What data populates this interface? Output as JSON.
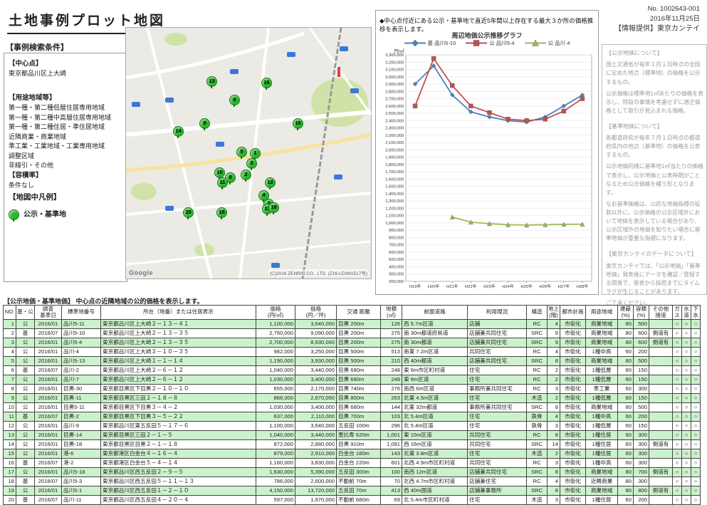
{
  "header": {
    "title": "土地事例プロット地図",
    "doc_no": "No. 1002643-001",
    "date": "2016年11月25日",
    "provider": "【情報提供】東京カンテイ"
  },
  "search": {
    "heading": "【事例検索条件】",
    "center_label": "【中心点】",
    "center_value": "東京都品川区上大崎",
    "youto_label": "【用途地域等】",
    "youto_items": [
      "第一種・第二種低層住居専用地域",
      "第一種・第二種中高層住居専用地域",
      "第一種・第二種住居・準住居地域",
      "近隣商業・商業地域",
      "準工業・工業地域・工業専用地域",
      "調整区域",
      "非線引・その他"
    ],
    "yoseki_label": "【容積率】",
    "yoseki_value": "条件なし",
    "legend_label": "【地図中凡例】",
    "legend_item": "公示・基準地"
  },
  "map": {
    "attribution": "(C)2016 ZENRIN CO., LTD. (Z16-LD3N1517号)",
    "logo": "Google",
    "markers": [
      {
        "no": "1",
        "x": 181,
        "y": 176
      },
      {
        "no": "2",
        "x": 168,
        "y": 206
      },
      {
        "no": "3",
        "x": 176,
        "y": 190
      },
      {
        "no": "4",
        "x": 193,
        "y": 235
      },
      {
        "no": "5",
        "x": 162,
        "y": 174
      },
      {
        "no": "6",
        "x": 152,
        "y": 101
      },
      {
        "no": "7",
        "x": 200,
        "y": 247
      },
      {
        "no": "8",
        "x": 146,
        "y": 210
      },
      {
        "no": "9",
        "x": 110,
        "y": 134
      },
      {
        "no": "10",
        "x": 131,
        "y": 203
      },
      {
        "no": "11",
        "x": 135,
        "y": 217
      },
      {
        "no": "12",
        "x": 202,
        "y": 217
      },
      {
        "no": "13",
        "x": 120,
        "y": 75
      },
      {
        "no": "14",
        "x": 73,
        "y": 145
      },
      {
        "no": "15",
        "x": 241,
        "y": 134
      },
      {
        "no": "16",
        "x": 197,
        "y": 77
      },
      {
        "no": "17",
        "x": 198,
        "y": 254
      },
      {
        "no": "18",
        "x": 134,
        "y": 259
      },
      {
        "no": "19",
        "x": 207,
        "y": 252
      },
      {
        "no": "20",
        "x": 87,
        "y": 259
      }
    ]
  },
  "chart_note": "◆中心点付近にある公示・基準地で直近5年間以上存在する最大３か所の価格推移を表示します。",
  "chart_data": {
    "type": "line",
    "title": "周辺地価公示推移グラフ",
    "ylabel": "円/㎡",
    "x": [
      "H19年",
      "H20年",
      "H21年",
      "H22年",
      "H23年",
      "H24年",
      "H25年",
      "H26年",
      "H27年",
      "H28年"
    ],
    "ylim": [
      200000,
      3300000
    ],
    "ytick_step": 100000,
    "grid": true,
    "legend_position": "top",
    "series": [
      {
        "name": "基 品川5-10",
        "color": "#4f81bd",
        "marker": "diamond",
        "values": [
          2900000,
          3150000,
          2750000,
          2520000,
          2450000,
          2400000,
          2380000,
          2450000,
          2600000,
          2750000
        ]
      },
      {
        "name": "公 品川5-4",
        "color": "#c0504d",
        "marker": "square",
        "values": [
          2600000,
          3250000,
          2880000,
          2600000,
          2510000,
          2420000,
          2400000,
          2420000,
          2530000,
          2700000
        ]
      },
      {
        "name": "公 品川 4",
        "color": "#9bbb59",
        "marker": "triangle",
        "values": [
          null,
          null,
          1080000,
          1010000,
          990000,
          975000,
          970000,
          975000,
          980000,
          982000
        ]
      }
    ]
  },
  "info_panel": {
    "sections": [
      {
        "heading": "【公示地価について】",
        "paragraphs": [
          "国土交通省が毎年１月１日時点の全国に定めた地点（標準地）の価格を公示するもの。",
          "公示価格は標準地1㎡あたりの価格を表示し、特段の事情を考慮せずに適正価格として取引が見込まれる価格。"
        ]
      },
      {
        "heading": "【基準地価について】",
        "paragraphs": [
          "各都道府県が毎年７月１日時点の都道府県内の地点（基準地）の価格を公表するもの。",
          "公示地価同様に基準地1㎡当たりの価格で表示し、公示地価と公表時期がことなるため公示価格を補う形となります。",
          "なお基準価格は、公的な地価指標の役割以外に、公示価格の公示区域外において地価を表示している場合があり、公示区域外の地価を知りたい場合に基準地価が重要な指標になります。"
        ]
      },
      {
        "heading": "【東京カンテイのデータについて】",
        "paragraphs": [
          "東京カンテイでは、「公示地価」「基準地価」発表後にデータを確認／登録する関係で、発表から採用までにタイムラグが生じることがあります。",
          "ご了承ください。"
        ]
      }
    ]
  },
  "table": {
    "caption": "【公示地価・基準地価】 中心点の近隣地域の公的価格を表示します。",
    "columns": [
      "NO.",
      "基・公",
      "調査\n基準日",
      "標準地番号",
      "所在（地番）または住居表示",
      "価格\n(円/㎡)",
      "価格\n(円／坪)",
      "交通 距離",
      "地積\n(㎡)",
      "前面道路",
      "利用現況",
      "構造",
      "地上\n(階)",
      "都市計画",
      "用途地域",
      "建蔽\n(%)",
      "容積\n(%)",
      "その他\n接道",
      "ガ\nス",
      "水\n道",
      "下\n水"
    ],
    "rows": [
      [
        "1",
        "公",
        "2016/01",
        "品川5-11",
        "東京都品川区上大崎２－１３－４１",
        "1,100,000",
        "3,640,000",
        "目黒 200m",
        "126",
        "西 5.7m区道",
        "店舗",
        "RC",
        "4",
        "市街化",
        "商業地域",
        "80",
        "500",
        "",
        "○",
        "○",
        "○"
      ],
      [
        "2",
        "基",
        "2016/07",
        "品川5-10",
        "東京都品川区上大崎２－１３－３５",
        "2,750,000",
        "9,090,000",
        "目黒 200m",
        "275",
        "南 30m都道府県道",
        "店舗兼共同住宅",
        "SRC",
        "9",
        "市街化",
        "商業地域",
        "80",
        "600",
        "側道有",
        "○",
        "○",
        "○"
      ],
      [
        "3",
        "公",
        "2016/01",
        "品川5-4",
        "東京都品川区上大崎２－１３－３５",
        "2,700,000",
        "8,930,000",
        "目黒 200m",
        "275",
        "南 30m都道",
        "店舗兼共同住宅",
        "SRC",
        "9",
        "市街化",
        "商業地域",
        "80",
        "600",
        "側道有",
        "○",
        "○",
        "○"
      ],
      [
        "4",
        "公",
        "2016/01",
        "品川-4",
        "東京都品川区上大崎３－１０－３５",
        "982,000",
        "3,250,000",
        "目黒 500m",
        "513",
        "南東 7.2m区道",
        "共同住宅",
        "RC",
        "4",
        "市街化",
        "1種中高",
        "60",
        "200",
        "",
        "○",
        "○",
        "○"
      ],
      [
        "5",
        "公",
        "2016/01",
        "品川5-13",
        "東京都品川区上大崎１－１－１４",
        "1,190,000",
        "3,930,000",
        "目黒 500m",
        "210",
        "西 40m都道",
        "店舗兼共同住宅",
        "SRC",
        "8",
        "市街化",
        "商業地域",
        "80",
        "500",
        "",
        "○",
        "○",
        "○"
      ],
      [
        "6",
        "基",
        "2016/07",
        "品川-2",
        "東京都品川区上大崎２－６－１２",
        "1,040,000",
        "3,440,000",
        "目黒 680m",
        "248",
        "東 6m市区町村道",
        "住宅",
        "RC",
        "2",
        "市街化",
        "1種低層",
        "60",
        "150",
        "",
        "○",
        "○",
        "○"
      ],
      [
        "7",
        "公",
        "2016/01",
        "品川-7",
        "東京都品川区上大崎２－６－１２",
        "1,030,000",
        "3,400,000",
        "目黒 680m",
        "248",
        "東 6m区道",
        "住宅",
        "RC",
        "2",
        "市街化",
        "1種低層",
        "60",
        "150",
        "",
        "○",
        "○",
        "○"
      ],
      [
        "8",
        "公",
        "2016/01",
        "目黒-30",
        "東京都目黒区下目黒２－１０－１０",
        "655,000",
        "2,170,000",
        "目黒 740m",
        "276",
        "南西 6m区道",
        "事務所兼共同住宅",
        "RC",
        "3",
        "市街化",
        "準工業",
        "60",
        "300",
        "",
        "○",
        "○",
        "○"
      ],
      [
        "9",
        "公",
        "2016/01",
        "目黒-11",
        "東京都目黒区三田２－１８－８",
        "868,000",
        "2,870,000",
        "目黒 800m",
        "263",
        "北東 4.5m区道",
        "住宅",
        "木造",
        "2",
        "市街化",
        "1種低層",
        "60",
        "150",
        "",
        "○",
        "○",
        "○"
      ],
      [
        "10",
        "公",
        "2016/01",
        "目黒5-11",
        "東京都目黒区下目黒３－４－２",
        "1,030,000",
        "3,400,000",
        "目黒 680m",
        "144",
        "北東 32m都道",
        "事務所兼共同住宅",
        "SRC",
        "8",
        "市街化",
        "商業地域",
        "80",
        "500",
        "",
        "○",
        "○",
        "○"
      ],
      [
        "11",
        "基",
        "2016/07",
        "目黒-2",
        "東京都目黒区下目黒３－５－２２",
        "637,000",
        "2,110,000",
        "目黒 700m",
        "103",
        "北 5.4m区道",
        "住宅",
        "鉄骨",
        "4",
        "市街化",
        "1種中高",
        "60",
        "200",
        "",
        "○",
        "○",
        "○"
      ],
      [
        "12",
        "公",
        "2016/01",
        "品川-9",
        "東京都品川区東五反田５－１７－６",
        "1,100,000",
        "3,640,000",
        "五反田 100m",
        "296",
        "北 5.4m区道",
        "住宅",
        "鉄骨",
        "3",
        "市街化",
        "1種低層",
        "60",
        "150",
        "",
        "○",
        "○",
        "○"
      ],
      [
        "13",
        "公",
        "2016/01",
        "目黒-14",
        "東京都目黒区三田２－１－５",
        "1,040,000",
        "3,440,000",
        "恵比寿 620m",
        "1,001",
        "東 15m区道",
        "共同住宅",
        "RC",
        "8",
        "市街化",
        "1種住居",
        "60",
        "300",
        "",
        "○",
        "○",
        "○"
      ],
      [
        "14",
        "公",
        "2016/01",
        "目黒-18",
        "東京都目黒区目黒２－１－１８",
        "872,000",
        "2,880,000",
        "目黒 910m",
        "1,091",
        "西 16m区道",
        "共同住宅",
        "SRC",
        "14",
        "市街化",
        "1種住居",
        "60",
        "300",
        "側道有",
        "○",
        "○",
        "○"
      ],
      [
        "15",
        "公",
        "2016/01",
        "港-6",
        "東京都港区白金台４－１６－４",
        "879,000",
        "2,910,000",
        "白金台 180m",
        "143",
        "北東 3.8m区道",
        "住宅",
        "木造",
        "2",
        "市街化",
        "1種住居",
        "60",
        "300",
        "",
        "○",
        "○",
        "○"
      ],
      [
        "16",
        "基",
        "2016/07",
        "港-2",
        "東京都港区白金台５－４－１４",
        "1,160,000",
        "3,830,000",
        "白金台 220m",
        "601",
        "北西 4.9m市区町村道",
        "共同住宅",
        "RC",
        "3",
        "市街化",
        "1種中高",
        "60",
        "300",
        "",
        "○",
        "○",
        "○"
      ],
      [
        "17",
        "公",
        "2016/01",
        "品川5-18",
        "東京都品川区西五反田２－９－５",
        "1,630,000",
        "5,390,000",
        "五反田 300m",
        "100",
        "南西 12m区道",
        "店舗兼共同住宅",
        "SRC",
        "8",
        "市街化",
        "商業地域",
        "80",
        "700",
        "側道有",
        "○",
        "○",
        "○"
      ],
      [
        "18",
        "基",
        "2016/07",
        "品川5-3",
        "東京都品川区西五反田５－１１－１３",
        "786,000",
        "2,600,000",
        "不動前 70m",
        "70",
        "北西 4.7m市区町村道",
        "店舗兼住宅",
        "RC",
        "4",
        "市街化",
        "近隣商業",
        "80",
        "300",
        "",
        "○",
        "○",
        "○"
      ],
      [
        "19",
        "公",
        "2016/01",
        "品川5-1",
        "東京都品川区西五反田１－２－１０",
        "4,150,000",
        "13,720,000",
        "五反田 70m",
        "413",
        "西 40m国道",
        "店舗兼事務所",
        "SRC",
        "8",
        "市街化",
        "商業地域",
        "80",
        "800",
        "側道有",
        "○",
        "○",
        "○"
      ],
      [
        "20",
        "基",
        "2016/07",
        "品川-11",
        "東京都品川区西五反田４－２０－４",
        "597,000",
        "1,970,000",
        "不動前 680m",
        "69",
        "北 5.4m市区町村道",
        "住宅",
        "木造",
        "3",
        "市街化",
        "1種住居",
        "60",
        "200",
        "",
        "○",
        "○",
        "○"
      ]
    ]
  }
}
